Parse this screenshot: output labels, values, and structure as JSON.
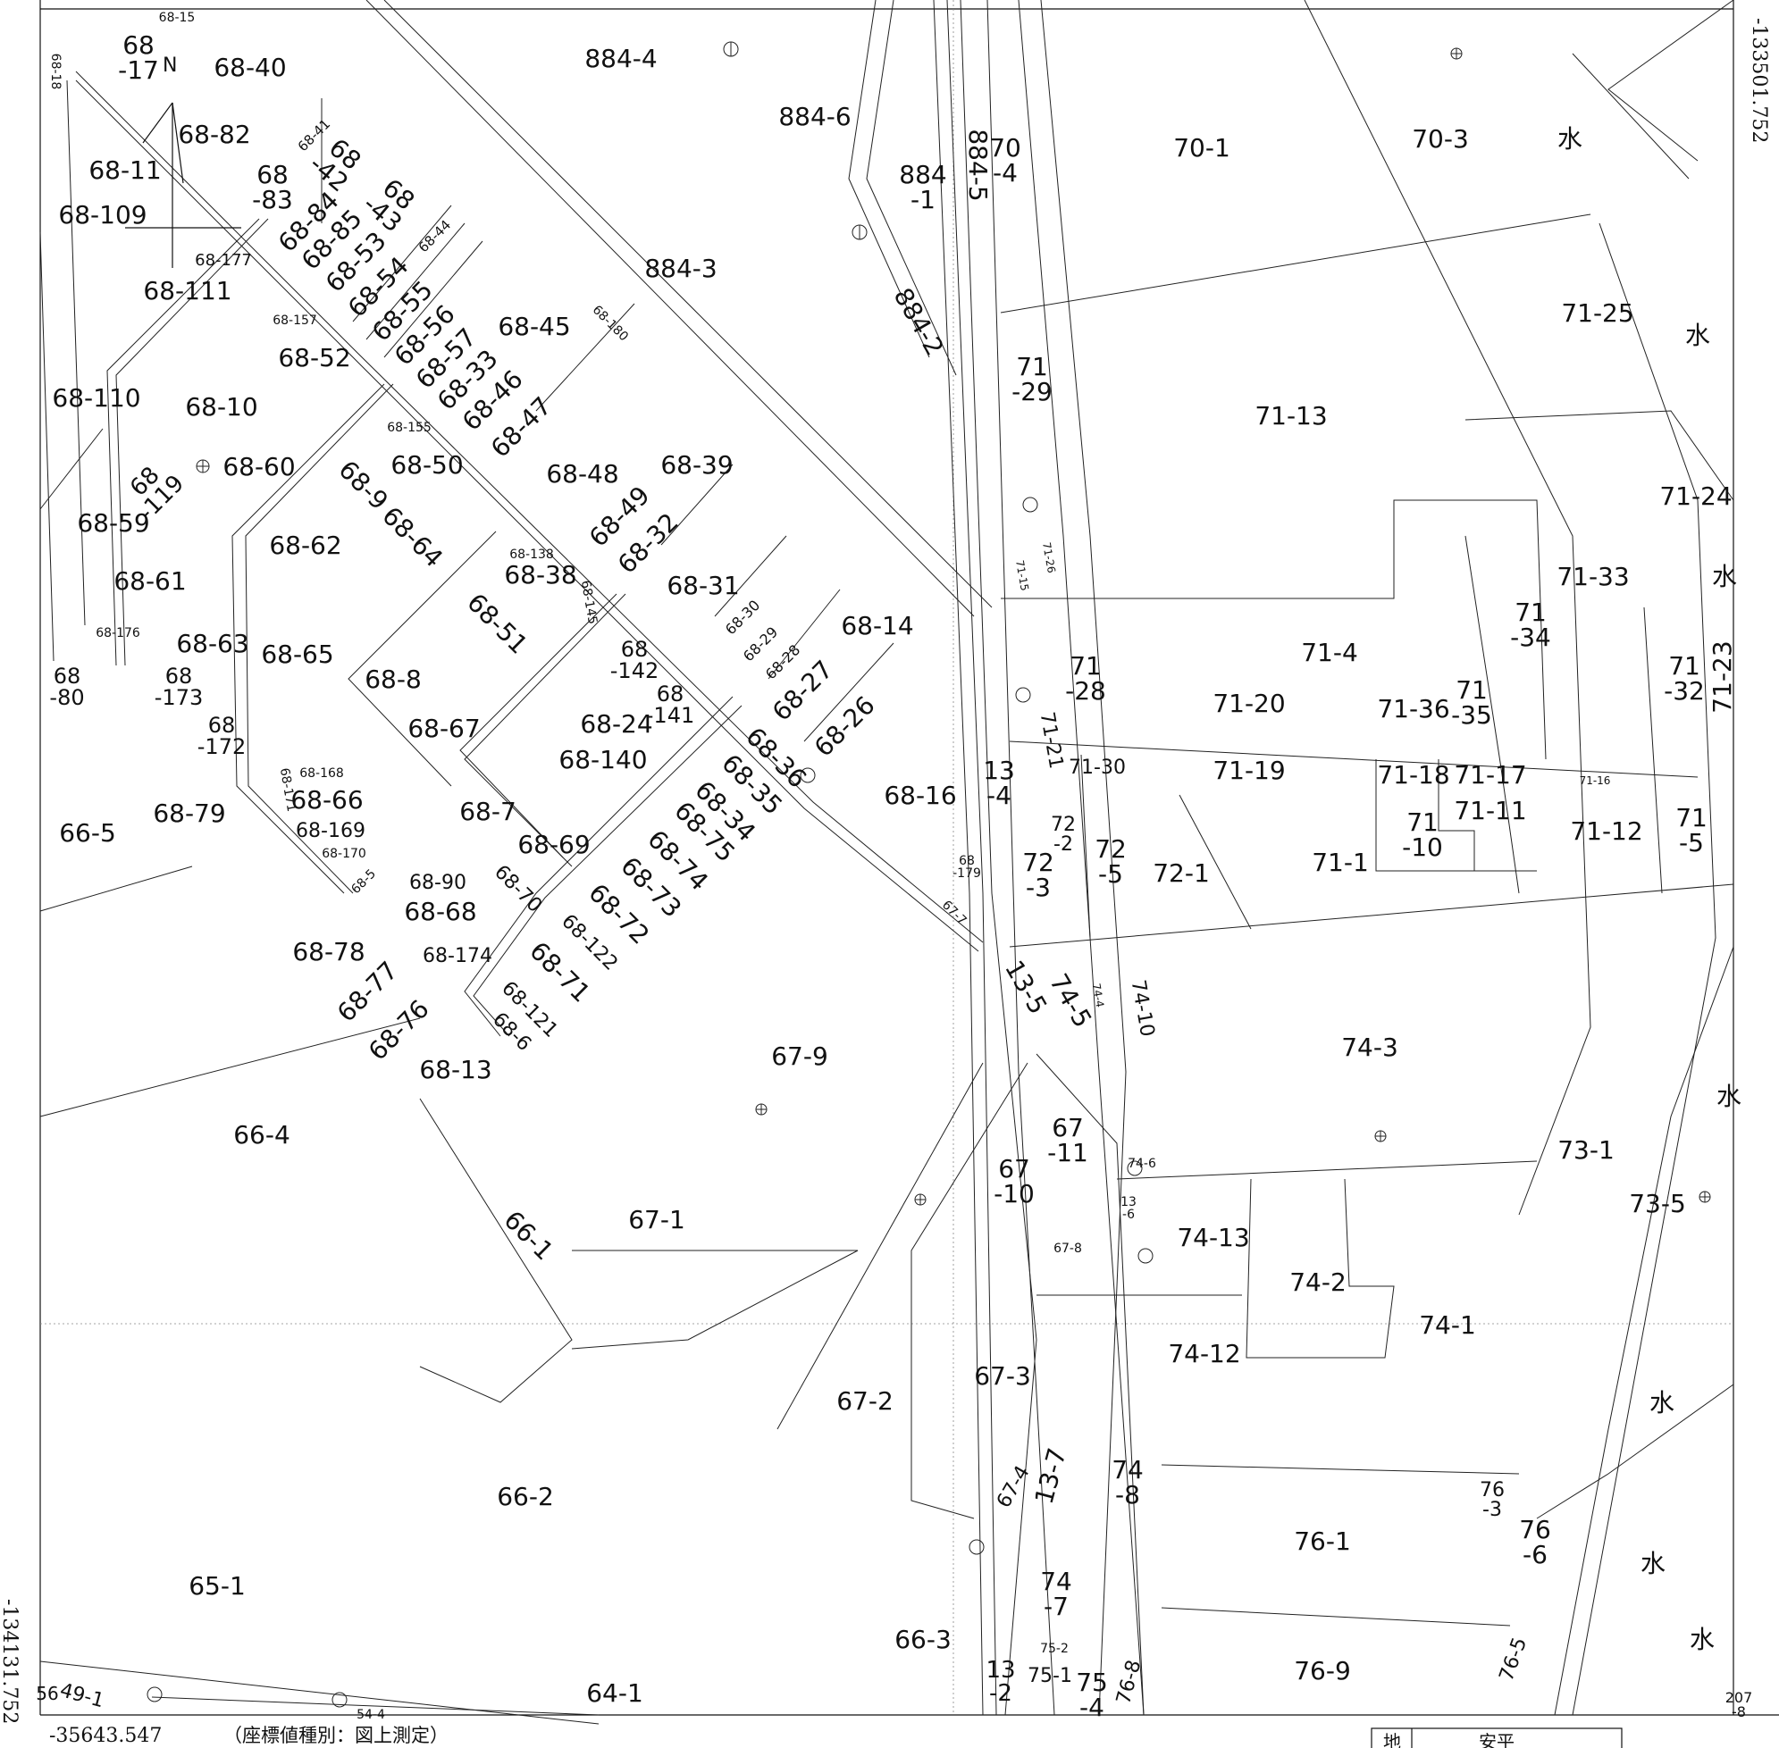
{
  "coordinates": {
    "top_right": "-133501.752",
    "bottom_left": "-134131.752",
    "bottom_x": "-35643.547",
    "note": "（座標値種別：図上測定）"
  },
  "north_label": "N",
  "legend": {
    "cell1": "地",
    "cell2": "安平"
  },
  "parcels": {
    "p68_17": "68\n-17",
    "p68_40": "68-40",
    "p884_4": "884-4",
    "p884_6": "884-6",
    "p68_82": "68-82",
    "p68_11": "68-11",
    "p68_109": "68-109",
    "p68_83": "68\n-83",
    "p68_42": "68\n-42",
    "p68_84": "68-84",
    "p68_43": "68\n-43",
    "p68_85": "68-85",
    "p68_53": "68-53",
    "p68_54": "68-54",
    "p68_55": "68-55",
    "p68_56": "68-56",
    "p68_57": "68-57",
    "p68_33": "68-33",
    "p68_46": "68-46",
    "p68_47": "68-47",
    "p68_111": "68-111",
    "p68_45": "68-45",
    "p884_3": "884-3",
    "p884_1": "884\n-1",
    "p884_5": "884-5",
    "p70_4": "70\n-4",
    "p70_1": "70-1",
    "p70_3": "70-3",
    "p884_2": "884-2",
    "p68_52": "68-52",
    "p68_110": "68-110",
    "p68_10": "68-10",
    "p68_60": "68-60",
    "p68_50": "68-50",
    "p68_48": "68-48",
    "p68_39": "68-39",
    "p68_119": "68\n-119",
    "p68_59": "68-59",
    "p68_9": "68-9",
    "p68_64": "68-64",
    "p68_62": "68-62",
    "p68_38": "68-38",
    "p68_49": "68-49",
    "p68_32": "68-32",
    "p68_61": "68-61",
    "p68_31": "68-31",
    "p68_51": "68-51",
    "p68_63": "68-63",
    "p68_65": "68-65",
    "p68_8": "68-8",
    "p68_142": "68\n-142",
    "p68_14": "68-14",
    "p68_80": "68\n-80",
    "p68_173": "68\n-173",
    "p68_141": "68\n-141",
    "p68_27": "68-27",
    "p68_67": "68-67",
    "p68_24": "68-24",
    "p68_26": "68-26",
    "p68_172": "68\n-172",
    "p68_140": "68-140",
    "p68_36": "68-36",
    "p68_66": "68-66",
    "p68_35": "68-35",
    "p68_16": "68-16",
    "p66_5": "66-5",
    "p68_79": "68-79",
    "p68_7": "68-7",
    "p68_34": "68-34",
    "p68_169": "68-169",
    "p68_75": "68-75",
    "p68_69": "68-69",
    "p68_74": "68-74",
    "p68_90": "68-90",
    "p68_73": "68-73",
    "p68_68": "68-68",
    "p68_70": "68-70",
    "p68_72": "68-72",
    "p68_78": "68-78",
    "p68_174": "68-174",
    "p68_122": "68-122",
    "p68_77": "68-77",
    "p68_71": "68-71",
    "p68_76": "68-76",
    "p68_121": "68-121",
    "p68_6": "68-6",
    "p68_13": "68-13",
    "p67_9": "67-9",
    "p66_4": "66-4",
    "p66_1": "66-1",
    "p67_1": "67-1",
    "p66_2": "66-2",
    "p65_1": "65-1",
    "p64_1": "64-1",
    "p66_3": "66-3",
    "p67_2": "67-2",
    "p67_3": "67-3",
    "p67_10": "67\n-10",
    "p67_11": "67\n-11",
    "p13_5": "13-5",
    "p74_5": "74-5",
    "p74_10": "74-10",
    "p13_4": "13\n-4",
    "p72_3": "72\n-3",
    "p72_2": "72\n-2",
    "p72_5": "72\n-5",
    "p72_1": "72-1",
    "p71_29": "71\n-29",
    "p71_13": "71-13",
    "p71_25": "71-25",
    "p71_24": "71-24",
    "p71_33": "71-33",
    "p71_34": "71\n-34",
    "p71_4": "71-4",
    "p71_28": "71\n-28",
    "p71_20": "71-20",
    "p71_36": "71-36",
    "p71_35": "71\n-35",
    "p71_32": "71\n-32",
    "p71_23": "71-23",
    "p71_21": "71-21",
    "p71_30": "71-30",
    "p71_19": "71-19",
    "p71_18": "71-18",
    "p71_17": "71-17",
    "p71_11": "71-11",
    "p71_10": "71\n-10",
    "p71_1": "71-1",
    "p71_12": "71-12",
    "p71_5": "71\n-5",
    "p74_3": "74-3",
    "p73_1": "73-1",
    "p73_5": "73-5",
    "p74_13": "74-13",
    "p74_2": "74-2",
    "p74_1": "74-1",
    "p74_12": "74-12",
    "p13_7": "13-7",
    "p74_8": "74\n-8",
    "p67_4": "67-4",
    "p76_1": "76-1",
    "p76_3": "76\n-3",
    "p76_6": "76\n-6",
    "p74_7": "74\n-7",
    "p13_2": "13\n-2",
    "p75_1": "75-1",
    "p75_4": "75\n-4",
    "p76_8": "76-8",
    "p76_9": "76-9",
    "p76_5": "76-5",
    "p207_8": "207\n-8",
    "p13_6": "13\n-6",
    "p74_6": "74-6",
    "p49_1": "49-1",
    "p56": "56",
    "p54_4": "54-4",
    "water": "水"
  },
  "small_parcels": {
    "s68_15": "68-15",
    "s68_18": "68-18",
    "s68_41": "68-41",
    "s68_44": "68-44",
    "s68_177": "68-177",
    "s68_180": "68-180",
    "s68_157": "68-157",
    "s68_155": "68-155",
    "s68_138": "68-138",
    "s68_145": "68-145",
    "s68_30": "68-30",
    "s68_29": "68-29",
    "s68_28": "68-28",
    "s68_176": "68-176",
    "s68_168": "68-168",
    "s68_171": "68-171",
    "s68_170": "68-170",
    "s68_5": "68-5",
    "s68_179": "68\n-179",
    "s67_7": "67-7",
    "s67_8": "67-8",
    "s71_15": "71-15",
    "s71_26": "71-26",
    "s71_16": "71-16",
    "s74_4": "74-4",
    "s75_2": "75-2"
  }
}
